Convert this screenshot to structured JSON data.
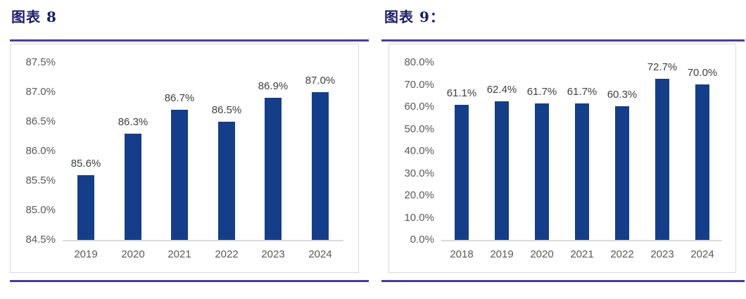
{
  "figures": [
    {
      "title": "图表 8"
    },
    {
      "title": "图表 9："
    }
  ],
  "chart_data": [
    {
      "type": "bar",
      "title": "图表 8",
      "categories": [
        "2019",
        "2020",
        "2021",
        "2022",
        "2023",
        "2024"
      ],
      "values": [
        85.6,
        86.3,
        86.7,
        86.5,
        86.9,
        87.0
      ],
      "value_labels": [
        "85.6%",
        "86.3%",
        "86.7%",
        "86.5%",
        "86.9%",
        "87.0%"
      ],
      "ylim": [
        84.5,
        87.5
      ],
      "ytick_step": 0.5,
      "yticks": [
        "87.5%",
        "87.0%",
        "86.5%",
        "86.0%",
        "85.5%",
        "85.0%",
        "84.5%"
      ],
      "xlabel": "",
      "ylabel": "",
      "grid": false,
      "legend": null,
      "bar_color": "#153E8A"
    },
    {
      "type": "bar",
      "title": "图表 9：",
      "categories": [
        "2018",
        "2019",
        "2020",
        "2021",
        "2022",
        "2023",
        "2024"
      ],
      "values": [
        61.1,
        62.4,
        61.7,
        61.7,
        60.3,
        72.7,
        70.0
      ],
      "value_labels": [
        "61.1%",
        "62.4%",
        "61.7%",
        "61.7%",
        "60.3%",
        "72.7%",
        "70.0%"
      ],
      "ylim": [
        0,
        80
      ],
      "ytick_step": 10,
      "yticks": [
        "80.0%",
        "70.0%",
        "60.0%",
        "50.0%",
        "40.0%",
        "30.0%",
        "20.0%",
        "10.0%",
        "0.0%"
      ],
      "xlabel": "",
      "ylabel": "",
      "grid": false,
      "legend": null,
      "bar_color": "#153E8A"
    }
  ],
  "colors": {
    "bar": "#153E8A",
    "title_text": "#1C1C6B",
    "rule": "#4B3E93",
    "axis_tick_text": "#595959",
    "data_label_text": "#404040",
    "axis_line": "#D9D9D9",
    "panel_border": "#D9D9D9",
    "background": "#FFFFFF"
  }
}
